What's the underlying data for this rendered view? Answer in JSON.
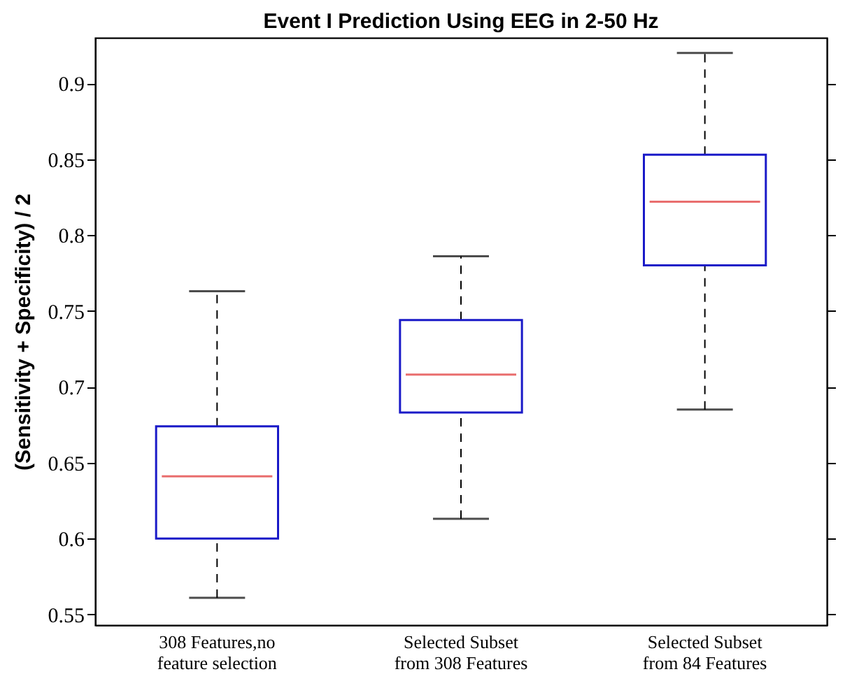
{
  "chart_data": {
    "type": "box",
    "title": "Event I Prediction Using EEG in 2-50 Hz",
    "ylabel": "(Sensitivity + Specificity) / 2",
    "categories": [
      "308 Features,no\nfeature selection",
      "Selected Subset\nfrom 308 Features",
      "Selected Subset\nfrom 84 Features"
    ],
    "boxes": [
      {
        "low": 0.561,
        "q1": 0.6,
        "median": 0.641,
        "q3": 0.674,
        "high": 0.763
      },
      {
        "low": 0.613,
        "q1": 0.683,
        "median": 0.708,
        "q3": 0.744,
        "high": 0.786
      },
      {
        "low": 0.685,
        "q1": 0.78,
        "median": 0.822,
        "q3": 0.853,
        "high": 0.92
      }
    ],
    "ylim": [
      0.543,
      0.93
    ],
    "yticks": [
      0.55,
      0.6,
      0.65,
      0.7,
      0.75,
      0.8,
      0.85,
      0.9
    ],
    "grid": false
  }
}
